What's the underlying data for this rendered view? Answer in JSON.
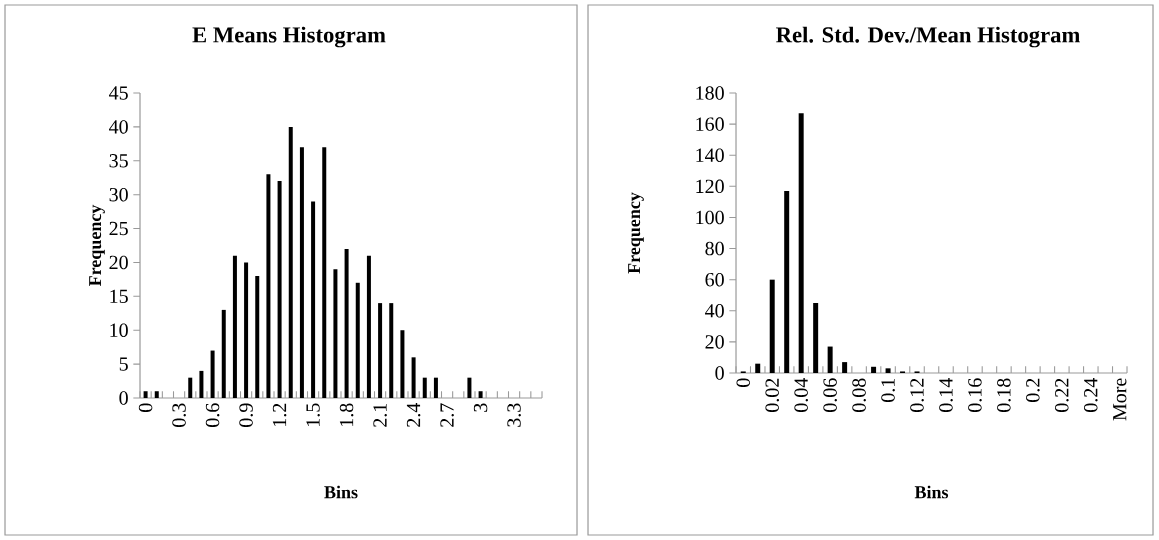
{
  "chart_data": [
    {
      "type": "bar",
      "title": "E Means Histogram",
      "xlabel": "Bins",
      "ylabel": "Frequency",
      "color": "#000000",
      "categories": [
        "0",
        null,
        null,
        "0.3",
        null,
        null,
        "0.6",
        null,
        null,
        "0.9",
        null,
        null,
        "1.2",
        null,
        null,
        "1.5",
        null,
        null,
        "1.8",
        null,
        null,
        "2.1",
        null,
        null,
        "2.4",
        null,
        null,
        "2.7",
        null,
        null,
        "3",
        null,
        null,
        "3.3",
        null,
        null
      ],
      "values": [
        1,
        1,
        0,
        0,
        3,
        4,
        7,
        13,
        21,
        20,
        18,
        33,
        32,
        40,
        37,
        29,
        37,
        19,
        22,
        17,
        21,
        14,
        14,
        10,
        6,
        3,
        3,
        0,
        0,
        3,
        1,
        0,
        0,
        0,
        0,
        0
      ],
      "ylim": [
        0,
        45
      ],
      "yticks": [
        0,
        5,
        10,
        15,
        20,
        25,
        30,
        35,
        40,
        45
      ],
      "grid": false
    },
    {
      "type": "bar",
      "title": "Rel. Std. Dev./Mean Histogram",
      "xlabel": "Bins",
      "ylabel": "Frequency",
      "color": "#000000",
      "categories": [
        "0",
        null,
        "0.02",
        null,
        "0.04",
        null,
        "0.06",
        null,
        "0.08",
        null,
        "0.1",
        null,
        "0.12",
        null,
        "0.14",
        null,
        "0.16",
        null,
        "0.18",
        null,
        "0.2",
        null,
        "0.22",
        null,
        "0.24",
        null,
        "More"
      ],
      "values": [
        1,
        6,
        60,
        117,
        167,
        45,
        17,
        7,
        0,
        4,
        3,
        1,
        1,
        0,
        0,
        0,
        0,
        0,
        0,
        0,
        0,
        0,
        0,
        0,
        0,
        0,
        0
      ],
      "ylim": [
        0,
        180
      ],
      "yticks": [
        0,
        20,
        40,
        60,
        80,
        100,
        120,
        140,
        160,
        180
      ],
      "grid": false
    }
  ]
}
